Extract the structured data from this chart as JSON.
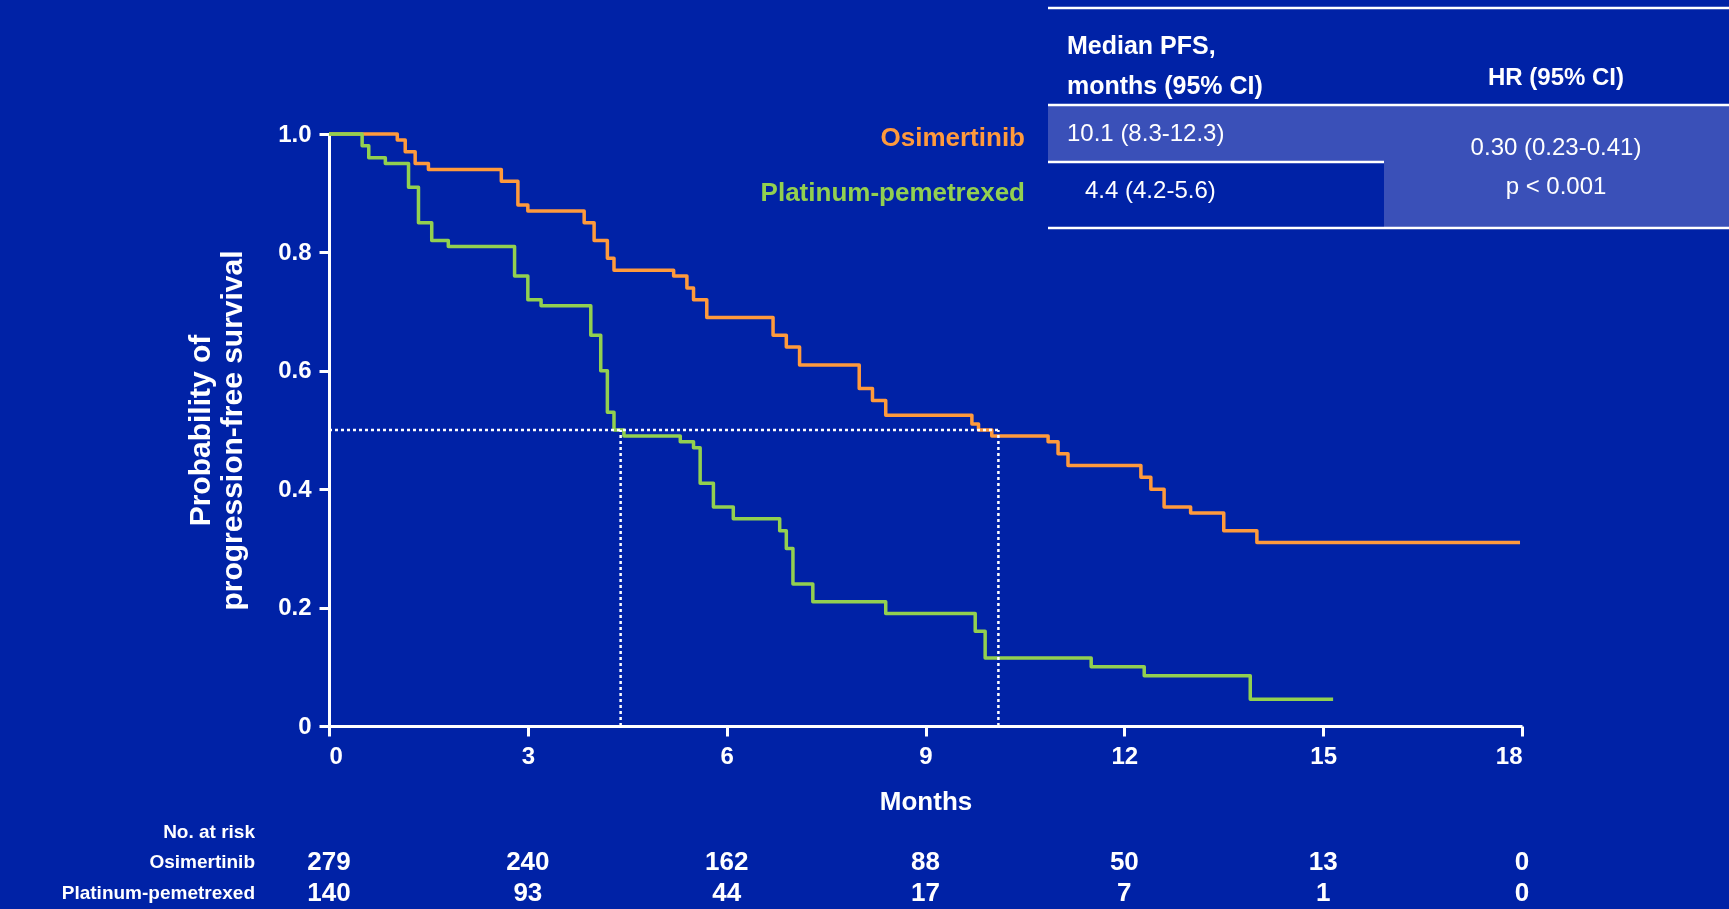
{
  "chart_data": {
    "type": "step",
    "xlabel": "Months",
    "ylabel": "Probability of\nprogression-free survival",
    "xlim": [
      0,
      18
    ],
    "xticks": [
      0,
      3,
      6,
      9,
      12,
      15,
      18
    ],
    "ylim": [
      0,
      1
    ],
    "yticks": [
      0,
      0.2,
      0.4,
      0.6,
      0.8,
      {
        "value": 1,
        "label": "1.0"
      }
    ],
    "grid": false,
    "legend": "top right",
    "line_style": "solid",
    "marker": "none",
    "series": [
      {
        "name": "Osimertinib",
        "color": "#ff9a3c",
        "x": [
          0,
          1.03,
          1.15,
          1.3,
          1.5,
          2.6,
          2.85,
          3.0,
          3.85,
          4.0,
          4.2,
          4.3,
          5.2,
          5.4,
          5.5,
          5.7,
          6.7,
          6.9,
          7.1,
          8.0,
          8.2,
          8.4,
          9.7,
          9.8,
          10.0,
          10.85,
          11.0,
          11.15,
          12.25,
          12.4,
          12.6,
          13.0,
          13.5,
          14.0,
          17.97
        ],
        "values": [
          1.0,
          0.99,
          0.97,
          0.95,
          0.94,
          0.92,
          0.88,
          0.87,
          0.85,
          0.82,
          0.79,
          0.77,
          0.76,
          0.74,
          0.72,
          0.69,
          0.66,
          0.64,
          0.61,
          0.57,
          0.55,
          0.525,
          0.51,
          0.5,
          0.49,
          0.48,
          0.46,
          0.44,
          0.42,
          0.4,
          0.37,
          0.36,
          0.33,
          0.31,
          0.31
        ]
      },
      {
        "name": "Platinum-pemetrexed",
        "color": "#92d050",
        "x": [
          0,
          0.5,
          0.6,
          0.85,
          1.2,
          1.35,
          1.55,
          1.8,
          2.8,
          3.0,
          3.2,
          3.95,
          4.1,
          4.2,
          4.3,
          4.45,
          5.3,
          5.5,
          5.6,
          5.8,
          6.1,
          6.8,
          6.9,
          7.0,
          7.3,
          8.4,
          9.75,
          9.9,
          11.5,
          12.3,
          13.9,
          15.15
        ],
        "values": [
          1.0,
          0.98,
          0.96,
          0.95,
          0.91,
          0.85,
          0.82,
          0.81,
          0.76,
          0.72,
          0.71,
          0.66,
          0.6,
          0.53,
          0.5,
          0.49,
          0.48,
          0.47,
          0.41,
          0.37,
          0.35,
          0.33,
          0.3,
          0.24,
          0.21,
          0.19,
          0.16,
          0.115,
          0.1,
          0.085,
          0.045,
          0.045
        ]
      }
    ],
    "ref_lines": [
      {
        "axis": "y",
        "value": 0.5,
        "color": "#ffffff",
        "line_style": "dotted"
      },
      {
        "axis": "x",
        "value": 4.4,
        "color": "#ffffff",
        "line_style": "dotted"
      },
      {
        "axis": "x",
        "value": 10.1,
        "color": "#ffffff",
        "line_style": "dotted"
      }
    ],
    "annotations": [
      "Median PFS,\nmonths (95% CI)",
      "HR (95% CI)",
      "10.1 (8.3-12.3)",
      "4.4 (4.2-5.6)",
      "0.30 (0.23-0.41)",
      "p < 0.001",
      "No. at risk",
      "279",
      "240",
      "162",
      "88",
      "50",
      "13",
      "0",
      "140",
      "93",
      "44",
      "17",
      "7",
      "1",
      "0"
    ]
  }
}
